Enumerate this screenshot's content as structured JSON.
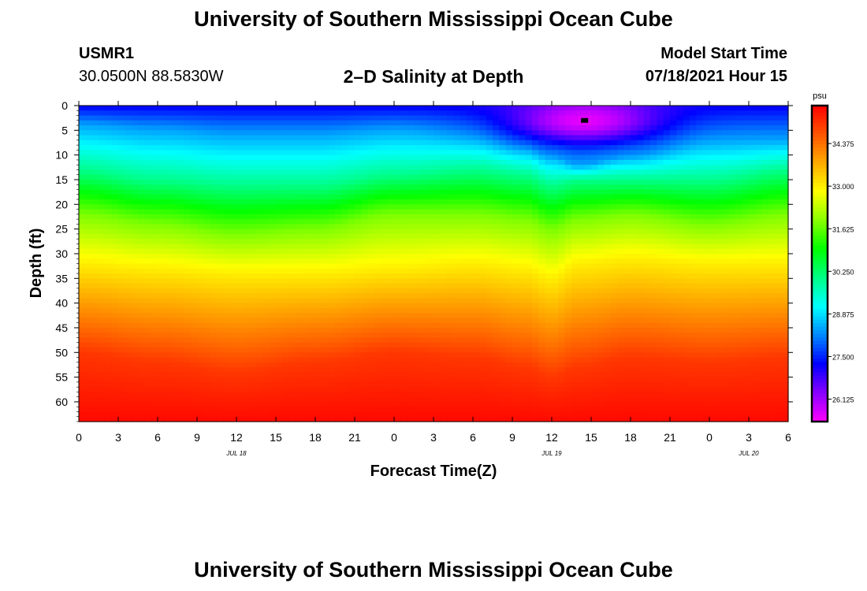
{
  "header": {
    "title": "University of Southern Mississippi Ocean Cube",
    "station_id": "USMR1",
    "station_coords": "30.0500N  88.5830W",
    "subtitle": "2–D Salinity at Depth",
    "model_label": "Model Start Time",
    "model_time": "07/18/2021 Hour 15"
  },
  "footer": {
    "title": "University of Southern Mississippi Ocean Cube"
  },
  "chart_data": {
    "type": "heatmap",
    "title": "2–D Salinity at Depth",
    "xlabel": "Forecast Time(Z)",
    "ylabel": "Depth (ft)",
    "x_ticks": [
      "0",
      "3",
      "6",
      "9",
      "12",
      "15",
      "18",
      "21",
      "0",
      "3",
      "6",
      "9",
      "12",
      "15",
      "18",
      "21",
      "0",
      "3",
      "6"
    ],
    "x_range_hours": [
      0,
      54
    ],
    "date_labels": [
      {
        "label": "JUL 18",
        "hour": 12
      },
      {
        "label": "JUL 19",
        "hour": 36
      },
      {
        "label": "JUL 20",
        "hour": 51
      }
    ],
    "y_ticks": [
      0,
      5,
      10,
      15,
      20,
      25,
      30,
      35,
      40,
      45,
      50,
      55,
      60
    ],
    "y_range_ft": [
      0,
      64
    ],
    "colorbar": {
      "unit": "psu",
      "range": [
        25.4,
        35.6
      ],
      "ticks": [
        "34.375",
        "33.000",
        "31.625",
        "30.250",
        "28.875",
        "27.500",
        "26.125"
      ],
      "colors": [
        "#ff00ff",
        "#8800ff",
        "#0000ff",
        "#0088ff",
        "#00ffff",
        "#00ff88",
        "#00ff00",
        "#88ff00",
        "#ffff00",
        "#ffaa00",
        "#ff5500",
        "#ff0000"
      ]
    },
    "isohaline_depths_ft": {
      "hours": [
        0,
        6,
        12,
        18,
        24,
        30,
        34,
        36,
        38,
        42,
        48,
        54
      ],
      "s28": [
        4,
        5,
        6,
        6,
        5,
        6,
        8,
        10,
        12,
        10,
        7,
        7
      ],
      "s30_cyan": [
        13,
        15,
        16,
        16,
        14,
        13,
        14,
        16,
        15,
        15,
        15,
        13
      ],
      "s32_green": [
        22,
        24,
        26,
        25,
        22,
        22,
        23,
        25,
        23,
        22,
        24,
        22
      ],
      "s33_yellow": [
        32,
        33,
        34,
        34,
        33,
        32,
        33,
        35,
        32,
        31,
        32,
        32
      ],
      "s35_red": [
        50,
        52,
        54,
        52,
        50,
        51,
        53,
        55,
        53,
        51,
        52,
        51
      ]
    },
    "low_salinity_patch": {
      "center_hour": 38.5,
      "center_depth_ft": 3,
      "min_psu": 25.6
    },
    "marker": {
      "hour": 38.5,
      "depth_ft": 3
    }
  }
}
